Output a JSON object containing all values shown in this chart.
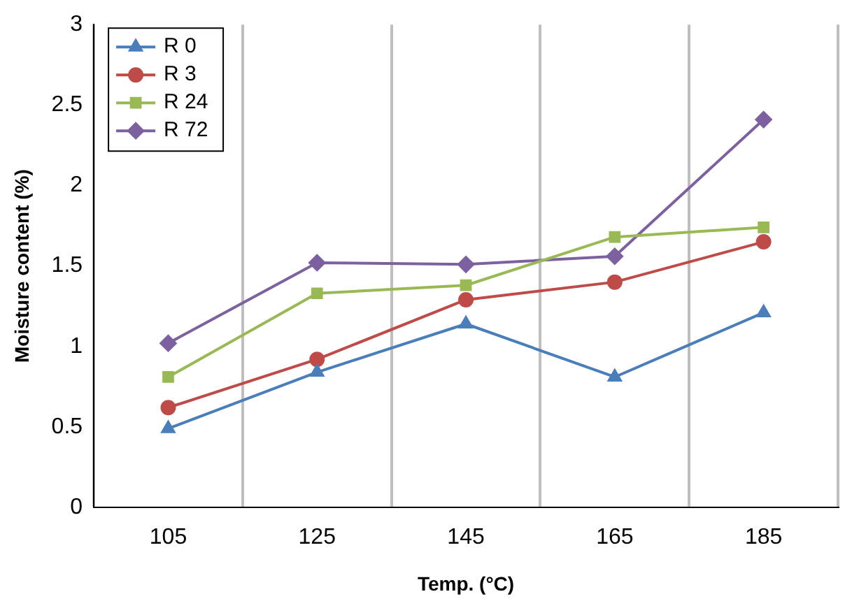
{
  "chart_data": {
    "type": "line",
    "xlabel": "Temp. (°C)",
    "ylabel": "Moisture content (%)",
    "categories": [
      "105",
      "125",
      "145",
      "165",
      "185"
    ],
    "ylim": [
      0,
      3
    ],
    "yticks": [
      0,
      0.5,
      1,
      1.5,
      2,
      2.5,
      3
    ],
    "grid": "x",
    "legend": "top left",
    "series": [
      {
        "name": "R 0",
        "color": "#4a7ebb",
        "marker": "triangle",
        "values": [
          0.49,
          0.84,
          1.14,
          0.81,
          1.21
        ]
      },
      {
        "name": "R 3",
        "color": "#be4b48",
        "marker": "circle",
        "values": [
          0.62,
          0.92,
          1.29,
          1.4,
          1.65
        ]
      },
      {
        "name": "R 24",
        "color": "#98b954",
        "marker": "square",
        "values": [
          0.81,
          1.33,
          1.38,
          1.68,
          1.74
        ]
      },
      {
        "name": "R 72",
        "color": "#7d60a0",
        "marker": "diamond",
        "values": [
          1.02,
          1.52,
          1.51,
          1.56,
          2.41
        ]
      }
    ]
  }
}
